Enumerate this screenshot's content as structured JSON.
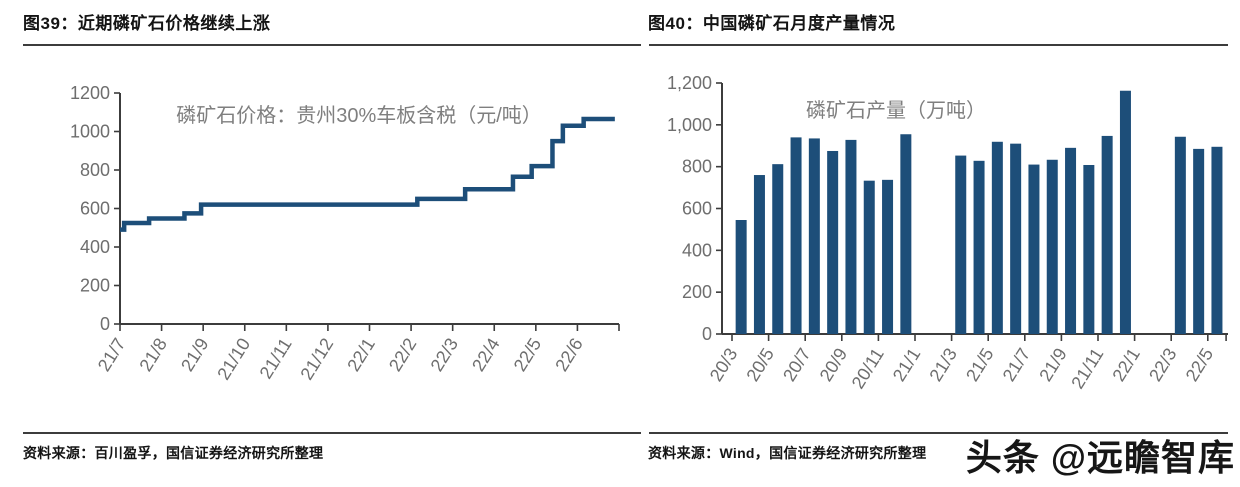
{
  "colors": {
    "accent": "#1d4e79",
    "axis_line": "#3c3c3c",
    "tick_label": "#6e6e6e",
    "inner_title": "#7f7f7f",
    "title_text": "#141414",
    "background": "#ffffff"
  },
  "left_panel": {
    "figure_title": "图39：近期磷矿石价格继续上涨",
    "source": "资料来源：百川盈孚，国信证券经济研究所整理"
  },
  "right_panel": {
    "figure_title": "图40：中国磷矿石月度产量情况",
    "source": "资料来源：Wind，国信证券经济研究所整理"
  },
  "watermark": {
    "text": "头条 @远瞻智库"
  },
  "chart_data": [
    {
      "id": "price-step-chart",
      "type": "line",
      "line_style": "step",
      "title": "磷矿石价格：贵州30%车板含税（元/吨）",
      "ylim": [
        0,
        1200
      ],
      "yticks": [
        0,
        200,
        400,
        600,
        800,
        1000,
        1200
      ],
      "ytick_labels": [
        "0",
        "200",
        "400",
        "600",
        "800",
        "1000",
        "1200"
      ],
      "xtick_labels": [
        "21/7",
        "21/8",
        "21/9",
        "21/10",
        "21/11",
        "21/12",
        "22/1",
        "22/2",
        "22/3",
        "22/4",
        "22/5",
        "22/6"
      ],
      "x_months_span": 12,
      "grid": false,
      "legend_position": "none",
      "series": [
        {
          "name": "磷矿石价格：贵州30%车板含税（元/吨）",
          "step_points": [
            [
              0,
              490
            ],
            [
              0.1,
              525
            ],
            [
              0.7,
              548
            ],
            [
              1.55,
              575
            ],
            [
              1.95,
              620
            ],
            [
              7.15,
              650
            ],
            [
              8.3,
              700
            ],
            [
              9.45,
              765
            ],
            [
              9.9,
              820
            ],
            [
              10.4,
              950
            ],
            [
              10.65,
              1030
            ],
            [
              11.15,
              1065
            ]
          ],
          "end_x": 11.9
        }
      ]
    },
    {
      "id": "production-bar-chart",
      "type": "bar",
      "title": "磷矿石产量（万吨）",
      "ylim": [
        0,
        1200
      ],
      "yticks": [
        0,
        200,
        400,
        600,
        800,
        1000,
        1200
      ],
      "ytick_labels": [
        "0",
        "200",
        "400",
        "600",
        "800",
        "1,000",
        "1,200"
      ],
      "categories": [
        "20/3",
        "20/4",
        "20/5",
        "20/6",
        "20/7",
        "20/8",
        "20/9",
        "20/10",
        "20/11",
        "20/12",
        "21/1",
        "21/2",
        "21/3",
        "21/4",
        "21/5",
        "21/6",
        "21/7",
        "21/8",
        "21/9",
        "21/10",
        "21/11",
        "21/12",
        "22/1",
        "22/2",
        "22/3",
        "22/4",
        "22/5"
      ],
      "xtick_every": 2,
      "grid": false,
      "values": [
        545,
        760,
        812,
        940,
        935,
        875,
        928,
        733,
        737,
        955,
        null,
        null,
        853,
        828,
        919,
        910,
        810,
        833,
        890,
        808,
        947,
        1163,
        null,
        null,
        943,
        885,
        895
      ]
    }
  ]
}
